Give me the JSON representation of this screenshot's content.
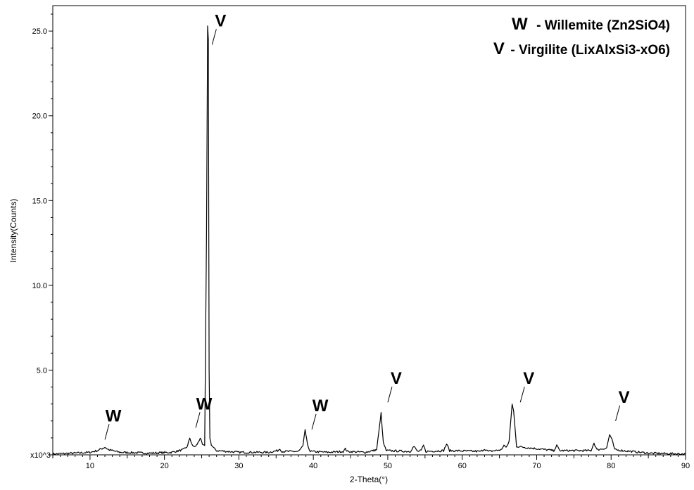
{
  "chart_data": {
    "type": "line",
    "title": "",
    "xlabel": "2-Theta(°)",
    "ylabel": "Intensity(Counts)",
    "y_multiplier_label": "x10^3",
    "xlim": [
      5,
      90
    ],
    "ylim": [
      0,
      26.5
    ],
    "x_ticks": [
      10,
      20,
      30,
      40,
      50,
      60,
      70,
      80,
      90
    ],
    "y_ticks": [
      5.0,
      10.0,
      15.0,
      20.0,
      25.0
    ],
    "grid": false,
    "legend_position": "top-right",
    "line_color": "#000000",
    "legend": [
      {
        "key": "W",
        "text": "- Willemite (Zn2SiO4)"
      },
      {
        "key": "V",
        "text": "- Virgilite (LixAlxSi3-xO6)"
      }
    ],
    "series": [
      {
        "x": [
          5,
          8,
          10,
          11,
          11.5,
          12,
          12.5,
          14,
          18,
          21,
          22.5,
          23.1,
          23.4,
          23.8,
          24.2,
          24.5,
          24.8,
          25.1,
          25.4,
          25.65,
          25.8,
          25.9,
          26.0,
          26.1,
          26.3,
          26.6,
          27,
          30,
          34,
          35.2,
          35.5,
          35.8,
          38,
          38.6,
          38.9,
          39.2,
          39.6,
          42,
          44,
          44.3,
          44.6,
          47,
          48.5,
          48.9,
          49.1,
          49.4,
          49.8,
          53,
          53.5,
          54,
          54.5,
          54.8,
          55.1,
          57.5,
          57.9,
          58.3,
          62.5,
          63,
          63.5,
          65.3,
          65.6,
          65.9,
          66.3,
          66.7,
          66.9,
          67.3,
          72.3,
          72.7,
          73.1,
          77.3,
          77.7,
          78.1,
          79.4,
          79.8,
          80.1,
          80.5,
          85,
          90
        ],
        "y": [
          0.05,
          0.1,
          0.15,
          0.25,
          0.35,
          0.45,
          0.3,
          0.15,
          0.1,
          0.15,
          0.3,
          0.5,
          1.0,
          0.5,
          0.5,
          0.7,
          1.0,
          0.6,
          0.5,
          13.0,
          25.3,
          24.5,
          5.0,
          1.0,
          0.6,
          0.4,
          0.25,
          0.15,
          0.15,
          0.25,
          0.35,
          0.2,
          0.2,
          0.5,
          1.5,
          0.6,
          0.2,
          0.15,
          0.2,
          0.35,
          0.2,
          0.15,
          0.3,
          1.7,
          2.5,
          0.7,
          0.25,
          0.2,
          0.5,
          0.2,
          0.25,
          0.55,
          0.2,
          0.25,
          0.65,
          0.25,
          0.2,
          0.35,
          0.2,
          0.3,
          0.6,
          0.4,
          0.8,
          3.0,
          2.6,
          0.5,
          0.25,
          0.55,
          0.25,
          0.25,
          0.7,
          0.3,
          0.4,
          1.2,
          0.9,
          0.3,
          0.1,
          0.05
        ]
      }
    ],
    "annotations": [
      {
        "label": "W",
        "x": 12,
        "y": 0.9
      },
      {
        "label": "W",
        "x": 24.2,
        "y": 1.6
      },
      {
        "label": "V",
        "x": 26.4,
        "y": 24.2
      },
      {
        "label": "W",
        "x": 39.8,
        "y": 1.5
      },
      {
        "label": "V",
        "x": 50.0,
        "y": 3.1
      },
      {
        "label": "V",
        "x": 67.8,
        "y": 3.1
      },
      {
        "label": "V",
        "x": 80.6,
        "y": 2.0
      }
    ]
  }
}
